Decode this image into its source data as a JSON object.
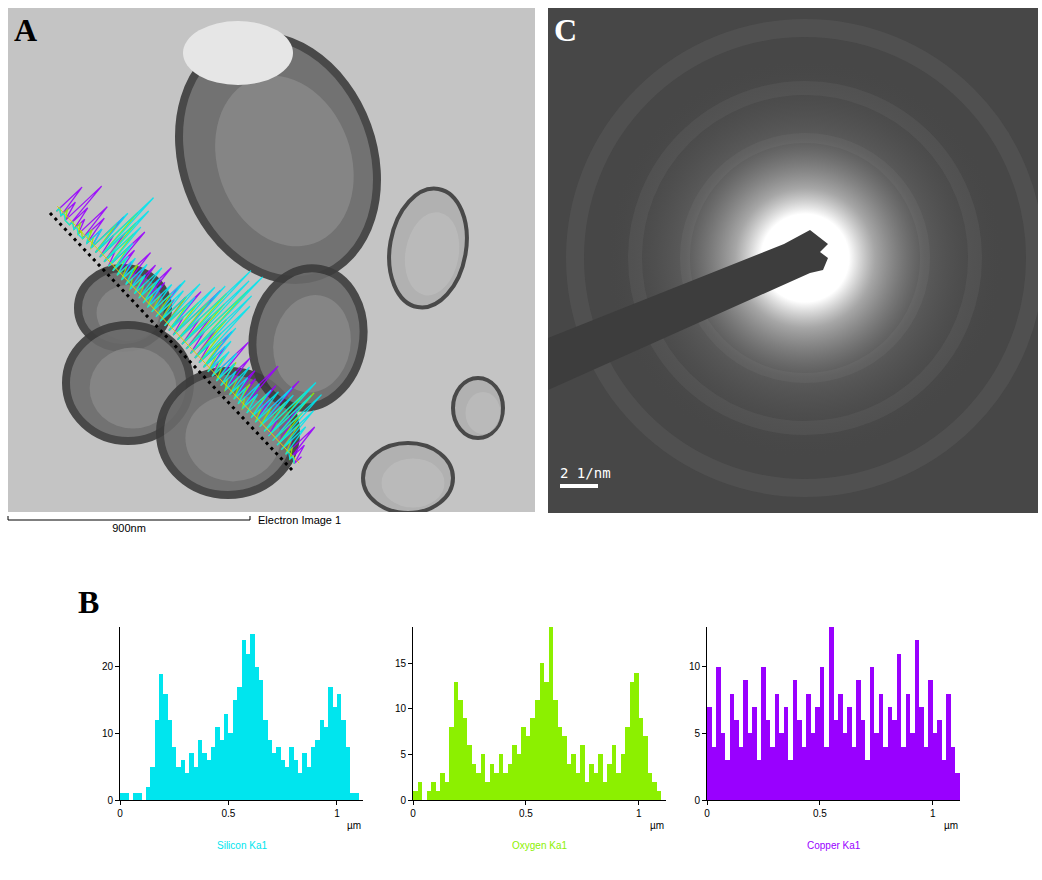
{
  "figure": {
    "panel_labels": [
      "A",
      "B",
      "C"
    ],
    "image_a": {
      "scale_bar": "900nm",
      "caption": "Electron Image 1"
    },
    "image_c": {
      "scale_bar": "2 1/nm"
    }
  },
  "chart_data": [
    {
      "type": "bar",
      "title": "Silicon Ka1",
      "x_label": "µm",
      "color": "#00e5ee",
      "x": [
        0.01,
        0.03,
        0.05,
        0.07,
        0.09,
        0.11,
        0.13,
        0.15,
        0.17,
        0.19,
        0.21,
        0.23,
        0.25,
        0.27,
        0.29,
        0.31,
        0.33,
        0.35,
        0.37,
        0.39,
        0.41,
        0.43,
        0.45,
        0.47,
        0.49,
        0.51,
        0.53,
        0.55,
        0.57,
        0.59,
        0.61,
        0.63,
        0.65,
        0.67,
        0.69,
        0.71,
        0.73,
        0.75,
        0.77,
        0.79,
        0.81,
        0.83,
        0.85,
        0.87,
        0.89,
        0.91,
        0.93,
        0.95,
        0.97,
        0.99,
        1.01,
        1.03,
        1.05,
        1.07,
        1.09,
        1.11
      ],
      "values": [
        1,
        1,
        0,
        1,
        1,
        0,
        2,
        5,
        12,
        19,
        16,
        12,
        8,
        5,
        6,
        4,
        7,
        5,
        9,
        7,
        6,
        8,
        11,
        9,
        13,
        10,
        15,
        17,
        24,
        22,
        25,
        20,
        18,
        12,
        9,
        7,
        8,
        6,
        5,
        8,
        6,
        4,
        7,
        5,
        8,
        9,
        12,
        11,
        17,
        14,
        16,
        12,
        8,
        1,
        1,
        0
      ],
      "xlim": [
        0,
        1.12
      ],
      "xticks": [
        0,
        0.5,
        1
      ],
      "ylim": [
        0,
        26
      ],
      "yticks": [
        0,
        10,
        20
      ],
      "grid": false
    },
    {
      "type": "bar",
      "title": "Oxygen Ka1",
      "x_label": "µm",
      "color": "#8cf000",
      "x": [
        0.01,
        0.03,
        0.05,
        0.07,
        0.09,
        0.11,
        0.13,
        0.15,
        0.17,
        0.19,
        0.21,
        0.23,
        0.25,
        0.27,
        0.29,
        0.31,
        0.33,
        0.35,
        0.37,
        0.39,
        0.41,
        0.43,
        0.45,
        0.47,
        0.49,
        0.51,
        0.53,
        0.55,
        0.57,
        0.59,
        0.61,
        0.63,
        0.65,
        0.67,
        0.69,
        0.71,
        0.73,
        0.75,
        0.77,
        0.79,
        0.81,
        0.83,
        0.85,
        0.87,
        0.89,
        0.91,
        0.93,
        0.95,
        0.97,
        0.99,
        1.01,
        1.03,
        1.05,
        1.07,
        1.09,
        1.11
      ],
      "values": [
        1,
        2,
        0,
        1,
        2,
        1,
        3,
        2,
        8,
        13,
        11,
        9,
        6,
        4,
        3,
        5,
        2,
        4,
        3,
        5,
        3,
        4,
        6,
        5,
        8,
        7,
        9,
        11,
        15,
        13,
        19,
        11,
        8,
        7,
        4,
        5,
        3,
        6,
        2,
        4,
        3,
        5,
        2,
        4,
        6,
        3,
        5,
        8,
        13,
        14,
        9,
        7,
        3,
        2,
        1,
        0
      ],
      "xlim": [
        0,
        1.12
      ],
      "xticks": [
        0,
        0.5,
        1
      ],
      "ylim": [
        0,
        19
      ],
      "yticks": [
        0,
        5,
        10,
        15
      ],
      "grid": false
    },
    {
      "type": "bar",
      "title": "Copper Ka1",
      "x_label": "µm",
      "color": "#9900ff",
      "x": [
        0.01,
        0.03,
        0.05,
        0.07,
        0.09,
        0.11,
        0.13,
        0.15,
        0.17,
        0.19,
        0.21,
        0.23,
        0.25,
        0.27,
        0.29,
        0.31,
        0.33,
        0.35,
        0.37,
        0.39,
        0.41,
        0.43,
        0.45,
        0.47,
        0.49,
        0.51,
        0.53,
        0.55,
        0.57,
        0.59,
        0.61,
        0.63,
        0.65,
        0.67,
        0.69,
        0.71,
        0.73,
        0.75,
        0.77,
        0.79,
        0.81,
        0.83,
        0.85,
        0.87,
        0.89,
        0.91,
        0.93,
        0.95,
        0.97,
        0.99,
        1.01,
        1.03,
        1.05,
        1.07,
        1.09,
        1.11
      ],
      "values": [
        7,
        4,
        10,
        5,
        3,
        8,
        6,
        4,
        9,
        5,
        7,
        3,
        10,
        6,
        4,
        8,
        5,
        7,
        3,
        9,
        6,
        4,
        8,
        5,
        7,
        10,
        4,
        13,
        6,
        8,
        5,
        7,
        4,
        9,
        6,
        3,
        10,
        5,
        8,
        4,
        7,
        6,
        11,
        4,
        8,
        5,
        12,
        7,
        4,
        9,
        5,
        6,
        3,
        8,
        4,
        2
      ],
      "xlim": [
        0,
        1.12
      ],
      "xticks": [
        0,
        0.5,
        1
      ],
      "ylim": [
        0,
        13
      ],
      "yticks": [
        0,
        5,
        10
      ],
      "grid": false
    }
  ]
}
